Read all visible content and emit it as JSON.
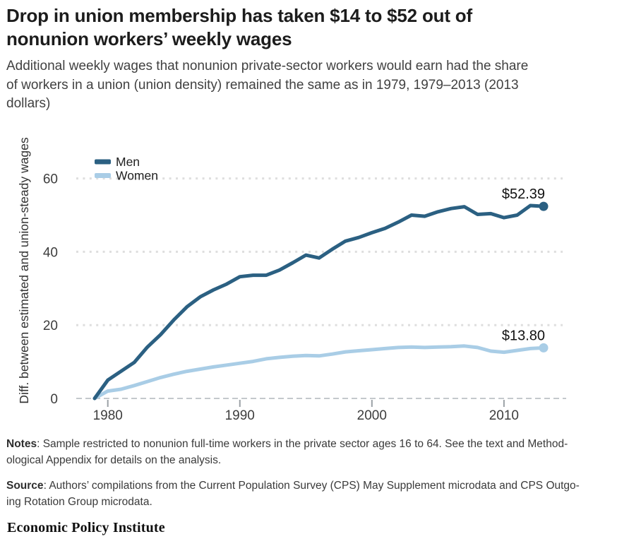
{
  "header": {
    "title": "Drop in union membership has taken $14 to $52 out of\nnonunion workers’ weekly wages",
    "subtitle": "Additional weekly wages that nonunion private-sector workers would earn had the share\nof workers in a union (union density) remained the same as in 1979, 1979–2013 (2013\ndollars)"
  },
  "chart_data": {
    "type": "line",
    "x": [
      1979,
      1980,
      1981,
      1982,
      1983,
      1984,
      1985,
      1986,
      1987,
      1988,
      1989,
      1990,
      1991,
      1992,
      1993,
      1994,
      1995,
      1996,
      1997,
      1998,
      1999,
      2000,
      2001,
      2002,
      2003,
      2004,
      2005,
      2006,
      2007,
      2008,
      2009,
      2010,
      2011,
      2012,
      2013
    ],
    "series": [
      {
        "name": "Men",
        "color": "#2b6082",
        "end_label": "$52.39",
        "values": [
          0,
          5.0,
          7.4,
          9.8,
          14.0,
          17.4,
          21.4,
          25.0,
          27.7,
          29.6,
          31.2,
          33.2,
          33.6,
          33.6,
          35.0,
          37.0,
          39.1,
          38.3,
          40.7,
          42.9,
          43.9,
          45.2,
          46.4,
          48.1,
          50.0,
          49.7,
          50.9,
          51.8,
          52.3,
          50.2,
          50.4,
          49.3,
          50.0,
          52.6,
          52.39
        ]
      },
      {
        "name": "Women",
        "color": "#a9cde6",
        "end_label": "$13.80",
        "values": [
          0,
          2.0,
          2.5,
          3.5,
          4.6,
          5.7,
          6.6,
          7.4,
          8.0,
          8.6,
          9.1,
          9.6,
          10.1,
          10.8,
          11.2,
          11.5,
          11.7,
          11.6,
          12.1,
          12.7,
          13.0,
          13.3,
          13.6,
          13.9,
          14.0,
          13.9,
          14.0,
          14.1,
          14.3,
          13.9,
          12.9,
          12.6,
          13.1,
          13.6,
          13.8
        ]
      }
    ],
    "ylabel": "Diff. between estimated and union-steady wages",
    "yticks": [
      0,
      20,
      40,
      60
    ],
    "xticks": [
      1980,
      1990,
      2000,
      2010
    ],
    "xlim": [
      1979,
      2013
    ],
    "ylim": [
      0,
      66
    ],
    "grid": "dotted-horizontal",
    "legend_position": "top-left"
  },
  "notes": {
    "label": "Notes",
    "text": ": Sample restricted to nonunion full-time workers in the private sector ages 16 to 64. See the text and Method-\nological Appendix for details on the analysis."
  },
  "source": {
    "label": "Source",
    "text": ": Authors’ compilations from the Current Population Survey (CPS) May Supplement microdata and CPS Outgo-\ning Rotation Group microdata."
  },
  "footer": {
    "brand": "Economic Policy Institute"
  },
  "style": {
    "grid_dot_color": "#dedede",
    "zero_line_color": "#c4c8cc",
    "tick_color": "#9ba1a6",
    "tick_label_color": "#3d3d3d",
    "end_label_color": "#111111"
  }
}
